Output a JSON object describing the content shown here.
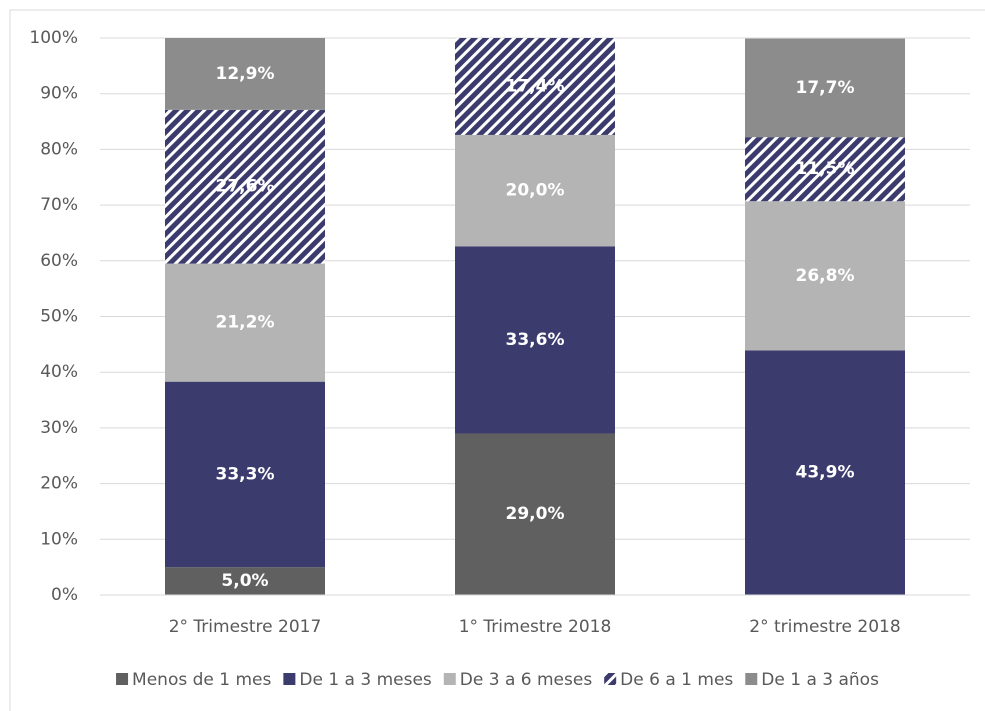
{
  "chart_data": {
    "type": "stacked_bar",
    "categories": [
      "2° Trimestre 2017",
      "1° Trimestre 2018",
      "2° trimestre 2018"
    ],
    "series": [
      {
        "name": "Menos de 1 mes",
        "color": "#606060",
        "values": [
          5.0,
          29.0,
          null
        ],
        "value_labels": [
          "5,0%",
          "29,0%",
          null
        ]
      },
      {
        "name": "De 1 a 3 meses",
        "color": "#3b3b6e",
        "values": [
          33.3,
          33.6,
          43.9
        ],
        "value_labels": [
          "33,3%",
          "33,6%",
          "43,9%"
        ]
      },
      {
        "name": "De 3 a 6 meses",
        "color": "#b4b4b4",
        "values": [
          21.2,
          20.0,
          26.8
        ],
        "value_labels": [
          "21,2%",
          "20,0%",
          "26,8%"
        ]
      },
      {
        "name": "De 6 a 1 mes",
        "color": "#3b3b6e",
        "pattern": "hatch",
        "values": [
          27.6,
          17.4,
          11.5
        ],
        "value_labels": [
          "27,6%",
          "17,4%",
          "11,5%"
        ]
      },
      {
        "name": "De 1 a 3 años",
        "color": "#8c8c8c",
        "values": [
          12.9,
          null,
          17.7
        ],
        "value_labels": [
          "12,9%",
          null,
          "17,7%"
        ]
      }
    ],
    "ylim": [
      0,
      100
    ],
    "yticks": [
      {
        "value": 0,
        "label": "0%"
      },
      {
        "value": 10,
        "label": "10%"
      },
      {
        "value": 20,
        "label": "20%"
      },
      {
        "value": 30,
        "label": "30%"
      },
      {
        "value": 40,
        "label": "40%"
      },
      {
        "value": 50,
        "label": "50%"
      },
      {
        "value": 60,
        "label": "60%"
      },
      {
        "value": 70,
        "label": "70%"
      },
      {
        "value": 80,
        "label": "80%"
      },
      {
        "value": 90,
        "label": "90%"
      },
      {
        "value": 100,
        "label": "100%"
      }
    ],
    "grid": true,
    "legend": "bottom"
  }
}
